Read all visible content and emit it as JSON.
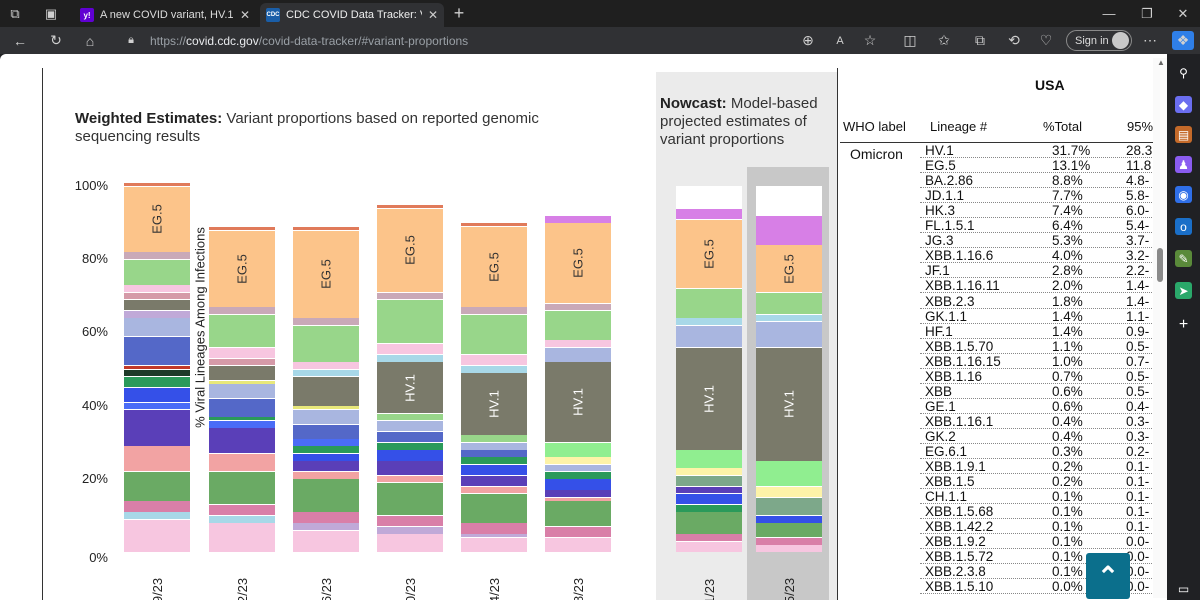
{
  "browser": {
    "tabs": [
      {
        "title": "A new COVID variant, HV.1, is no",
        "favicon": "y!",
        "favicon_color": "#6001d2",
        "active": false
      },
      {
        "title": "CDC COVID Data Tracker: Variant",
        "favicon": "CDC",
        "favicon_color": "#1a5ea8",
        "active": true
      }
    ],
    "url_prefix": "https://",
    "url_host": "covid.cdc.gov",
    "url_path": "/covid-data-tracker/#variant-proportions",
    "sign_in_label": "Sign in"
  },
  "chart": {
    "heading_bold": "Weighted Estimates:",
    "heading_rest": " Variant proportions based on reported genomic sequencing results",
    "nowcast_bold": "Nowcast:",
    "nowcast_rest": " Model-based projected estimates of variant proportions",
    "ylabel": "% Viral Lineages Among Infections",
    "yticks": [
      "100%",
      "80%",
      "60%",
      "40%",
      "20%",
      "0%"
    ]
  },
  "chart_data": {
    "type": "bar",
    "stacked": true,
    "ylim": [
      0,
      100
    ],
    "ylabel": "% Viral Lineages Among Infections",
    "categories": [
      "/19/23",
      "9/2/23",
      "/16/23",
      "/30/23",
      "/14/23",
      "/28/23",
      "/11/23",
      "/25/23"
    ],
    "columns": [
      {
        "x": "/19/23",
        "segments": [
          {
            "value": 9,
            "color": "#f7c6e0"
          },
          {
            "value": 2,
            "color": "#a8d8e8"
          },
          {
            "value": 3,
            "color": "#d97fa8"
          },
          {
            "value": 8,
            "color": "#6aaa64"
          },
          {
            "value": 7,
            "color": "#f2a3a3"
          },
          {
            "value": 10,
            "color": "#5a3fb8"
          },
          {
            "value": 2,
            "color": "#4a6cf7"
          },
          {
            "value": 4,
            "color": "#3550e8"
          },
          {
            "value": 3,
            "color": "#2a9a5a"
          },
          {
            "value": 2,
            "color": "#1e3a28"
          },
          {
            "value": 1,
            "color": "#c0392b"
          },
          {
            "value": 8,
            "color": "#5468c8"
          },
          {
            "value": 5,
            "color": "#a9b6e0"
          },
          {
            "value": 2,
            "color": "#c0a9d8"
          },
          {
            "value": 3,
            "color": "#7a7a6a"
          },
          {
            "value": 2,
            "color": "#d59aa8"
          },
          {
            "value": 2,
            "color": "#f7c6e0"
          },
          {
            "value": 7,
            "color": "#98d68a"
          },
          {
            "value": 2,
            "color": "#c9a9b8"
          },
          {
            "value": 18,
            "color": "#fcc48a",
            "label": "EG.5"
          },
          {
            "value": 1,
            "color": "#e07a5a"
          }
        ]
      },
      {
        "x": "9/2/23",
        "segments": [
          {
            "value": 8,
            "color": "#f7c6e0"
          },
          {
            "value": 2,
            "color": "#a8d8e8"
          },
          {
            "value": 3,
            "color": "#d97fa8"
          },
          {
            "value": 9,
            "color": "#6aaa64"
          },
          {
            "value": 5,
            "color": "#f2a3a3"
          },
          {
            "value": 7,
            "color": "#5a3fb8"
          },
          {
            "value": 2,
            "color": "#4a6cf7"
          },
          {
            "value": 1,
            "color": "#2a9a5a"
          },
          {
            "value": 5,
            "color": "#5468c8"
          },
          {
            "value": 4,
            "color": "#a9b6e0"
          },
          {
            "value": 1,
            "color": "#e8e87a"
          },
          {
            "value": 4,
            "color": "#7a7a6a"
          },
          {
            "value": 2,
            "color": "#d59aa8"
          },
          {
            "value": 3,
            "color": "#f7c6e0"
          },
          {
            "value": 9,
            "color": "#98d68a"
          },
          {
            "value": 2,
            "color": "#c9a9b8"
          },
          {
            "value": 21,
            "color": "#fcc48a",
            "label": "EG.5"
          },
          {
            "value": 1,
            "color": "#e07a5a"
          }
        ]
      },
      {
        "x": "/16/23",
        "segments": [
          {
            "value": 6,
            "color": "#f7c6e0"
          },
          {
            "value": 2,
            "color": "#c0a9d8"
          },
          {
            "value": 3,
            "color": "#d97fa8"
          },
          {
            "value": 9,
            "color": "#6aaa64"
          },
          {
            "value": 2,
            "color": "#f2a3a3"
          },
          {
            "value": 3,
            "color": "#5a3fb8"
          },
          {
            "value": 2,
            "color": "#3550e8"
          },
          {
            "value": 2,
            "color": "#2a9a5a"
          },
          {
            "value": 2,
            "color": "#4a6cf7"
          },
          {
            "value": 4,
            "color": "#5468c8"
          },
          {
            "value": 4,
            "color": "#a9b6e0"
          },
          {
            "value": 1,
            "color": "#e8e87a"
          },
          {
            "value": 8,
            "color": "#7a7a6a"
          },
          {
            "value": 2,
            "color": "#a8d8e8"
          },
          {
            "value": 2,
            "color": "#f7c6e0"
          },
          {
            "value": 10,
            "color": "#98d68a"
          },
          {
            "value": 2,
            "color": "#c9a9b8"
          },
          {
            "value": 24,
            "color": "#fcc48a",
            "label": "EG.5"
          },
          {
            "value": 1,
            "color": "#e07a5a"
          }
        ]
      },
      {
        "x": "/30/23",
        "segments": [
          {
            "value": 5,
            "color": "#f7c6e0"
          },
          {
            "value": 2,
            "color": "#c0a9d8"
          },
          {
            "value": 3,
            "color": "#d97fa8"
          },
          {
            "value": 9,
            "color": "#6aaa64"
          },
          {
            "value": 2,
            "color": "#f2a3a3"
          },
          {
            "value": 4,
            "color": "#5a3fb8"
          },
          {
            "value": 3,
            "color": "#3550e8"
          },
          {
            "value": 2,
            "color": "#2a9a5a"
          },
          {
            "value": 3,
            "color": "#5468c8"
          },
          {
            "value": 3,
            "color": "#a9b6e0"
          },
          {
            "value": 2,
            "color": "#98d68a"
          },
          {
            "value": 14,
            "color": "#7a7a6a",
            "label": "HV.1"
          },
          {
            "value": 2,
            "color": "#a8d8e8"
          },
          {
            "value": 3,
            "color": "#f7c6e0"
          },
          {
            "value": 12,
            "color": "#98d68a"
          },
          {
            "value": 2,
            "color": "#c9a9b8"
          },
          {
            "value": 23,
            "color": "#fcc48a",
            "label": "EG.5"
          },
          {
            "value": 1,
            "color": "#e07a5a"
          }
        ]
      },
      {
        "x": "/14/23",
        "segments": [
          {
            "value": 4,
            "color": "#f7c6e0"
          },
          {
            "value": 1,
            "color": "#c0a9d8"
          },
          {
            "value": 3,
            "color": "#d97fa8"
          },
          {
            "value": 8,
            "color": "#6aaa64"
          },
          {
            "value": 2,
            "color": "#f2a3a3"
          },
          {
            "value": 3,
            "color": "#5a3fb8"
          },
          {
            "value": 3,
            "color": "#3550e8"
          },
          {
            "value": 2,
            "color": "#2a9a5a"
          },
          {
            "value": 2,
            "color": "#5468c8"
          },
          {
            "value": 2,
            "color": "#a9b6e0"
          },
          {
            "value": 2,
            "color": "#98d68a"
          },
          {
            "value": 17,
            "color": "#7a7a6a",
            "label": "HV.1"
          },
          {
            "value": 2,
            "color": "#a8d8e8"
          },
          {
            "value": 3,
            "color": "#f7c6e0"
          },
          {
            "value": 11,
            "color": "#98d68a"
          },
          {
            "value": 2,
            "color": "#c9a9b8"
          },
          {
            "value": 22,
            "color": "#fcc48a",
            "label": "EG.5"
          },
          {
            "value": 1,
            "color": "#e07a5a"
          }
        ]
      },
      {
        "x": "/28/23",
        "segments": [
          {
            "value": 4,
            "color": "#f7c6e0"
          },
          {
            "value": 3,
            "color": "#d97fa8"
          },
          {
            "value": 7,
            "color": "#6aaa64"
          },
          {
            "value": 1,
            "color": "#f2a3a3"
          },
          {
            "value": 2,
            "color": "#5a3fb8"
          },
          {
            "value": 3,
            "color": "#3550e8"
          },
          {
            "value": 2,
            "color": "#2a9a5a"
          },
          {
            "value": 2,
            "color": "#a9b6e0"
          },
          {
            "value": 2,
            "color": "#fdf3a8"
          },
          {
            "value": 4,
            "color": "#90ee90"
          },
          {
            "value": 22,
            "color": "#7a7a6a",
            "label": "HV.1"
          },
          {
            "value": 4,
            "color": "#a9b6e0"
          },
          {
            "value": 2,
            "color": "#f7c6e0"
          },
          {
            "value": 8,
            "color": "#98d68a"
          },
          {
            "value": 2,
            "color": "#c9a9b8"
          },
          {
            "value": 22,
            "color": "#fcc48a",
            "label": "EG.5"
          },
          {
            "value": 2,
            "color": "#d77fe6"
          }
        ]
      },
      {
        "x": "/11/23",
        "segments": [
          {
            "value": 3,
            "color": "#f7c6e0"
          },
          {
            "value": 2,
            "color": "#d97fa8"
          },
          {
            "value": 6,
            "color": "#6aaa64"
          },
          {
            "value": 2,
            "color": "#2a9a5a"
          },
          {
            "value": 3,
            "color": "#3550e8"
          },
          {
            "value": 2,
            "color": "#5a3fb8"
          },
          {
            "value": 3,
            "color": "#7da88a"
          },
          {
            "value": 2,
            "color": "#fdf3a8"
          },
          {
            "value": 5,
            "color": "#90ee90"
          },
          {
            "value": 28,
            "color": "#7a7a6a",
            "label": "HV.1"
          },
          {
            "value": 6,
            "color": "#a9b6e0"
          },
          {
            "value": 2,
            "color": "#a8d8e8"
          },
          {
            "value": 8,
            "color": "#98d68a"
          },
          {
            "value": 19,
            "color": "#fcc48a",
            "label": "EG.5"
          },
          {
            "value": 3,
            "color": "#d77fe6"
          }
        ]
      },
      {
        "x": "/25/23",
        "segments": [
          {
            "value": 2,
            "color": "#f7c6e0"
          },
          {
            "value": 2,
            "color": "#d97fa8"
          },
          {
            "value": 4,
            "color": "#6aaa64"
          },
          {
            "value": 2,
            "color": "#3550e8"
          },
          {
            "value": 5,
            "color": "#7da88a"
          },
          {
            "value": 3,
            "color": "#fdf3a8"
          },
          {
            "value": 7,
            "color": "#90ee90"
          },
          {
            "value": 31,
            "color": "#7a7a6a",
            "label": "HV.1"
          },
          {
            "value": 7,
            "color": "#a9b6e0"
          },
          {
            "value": 2,
            "color": "#a8d8e8"
          },
          {
            "value": 6,
            "color": "#98d68a"
          },
          {
            "value": 13,
            "color": "#fcc48a",
            "label": "EG.5"
          },
          {
            "value": 8,
            "color": "#d77fe6"
          }
        ]
      }
    ]
  },
  "table": {
    "region": "USA",
    "headers": [
      "WHO label",
      "Lineage #",
      "%Total",
      "95%"
    ],
    "who_label": "Omicron",
    "rows": [
      [
        "HV.1",
        "31.7%",
        "28.3"
      ],
      [
        "EG.5",
        "13.1%",
        "11.8"
      ],
      [
        "BA.2.86",
        "8.8%",
        "4.8-"
      ],
      [
        "JD.1.1",
        "7.7%",
        "5.8-"
      ],
      [
        "HK.3",
        "7.4%",
        "6.0-"
      ],
      [
        "FL.1.5.1",
        "6.4%",
        "5.4-"
      ],
      [
        "JG.3",
        "5.3%",
        "3.7-"
      ],
      [
        "XBB.1.16.6",
        "4.0%",
        "3.2-"
      ],
      [
        "JF.1",
        "2.8%",
        "2.2-"
      ],
      [
        "XBB.1.16.11",
        "2.0%",
        "1.4-"
      ],
      [
        "XBB.2.3",
        "1.8%",
        "1.4-"
      ],
      [
        "GK.1.1",
        "1.4%",
        "1.1-"
      ],
      [
        "HF.1",
        "1.4%",
        "0.9-"
      ],
      [
        "XBB.1.5.70",
        "1.1%",
        "0.5-"
      ],
      [
        "XBB.1.16.15",
        "1.0%",
        "0.7-"
      ],
      [
        "XBB.1.16",
        "0.7%",
        "0.5-"
      ],
      [
        "XBB",
        "0.6%",
        "0.5-"
      ],
      [
        "GE.1",
        "0.6%",
        "0.4-"
      ],
      [
        "XBB.1.16.1",
        "0.4%",
        "0.3-"
      ],
      [
        "GK.2",
        "0.4%",
        "0.3-"
      ],
      [
        "EG.6.1",
        "0.3%",
        "0.2-"
      ],
      [
        "XBB.1.9.1",
        "0.2%",
        "0.1-"
      ],
      [
        "XBB.1.5",
        "0.2%",
        "0.1-"
      ],
      [
        "CH.1.1",
        "0.1%",
        "0.1-"
      ],
      [
        "XBB.1.5.68",
        "0.1%",
        "0.1-"
      ],
      [
        "XBB.1.42.2",
        "0.1%",
        "0.1-"
      ],
      [
        "XBB.1.9.2",
        "0.1%",
        "0.0-"
      ],
      [
        "XBB.1.5.72",
        "0.1%",
        "0.0-"
      ],
      [
        "XBB.2.3.8",
        "0.1%",
        "0.0-"
      ],
      [
        "XBB.1.5.10",
        "0.0%",
        "0.0-"
      ]
    ]
  }
}
